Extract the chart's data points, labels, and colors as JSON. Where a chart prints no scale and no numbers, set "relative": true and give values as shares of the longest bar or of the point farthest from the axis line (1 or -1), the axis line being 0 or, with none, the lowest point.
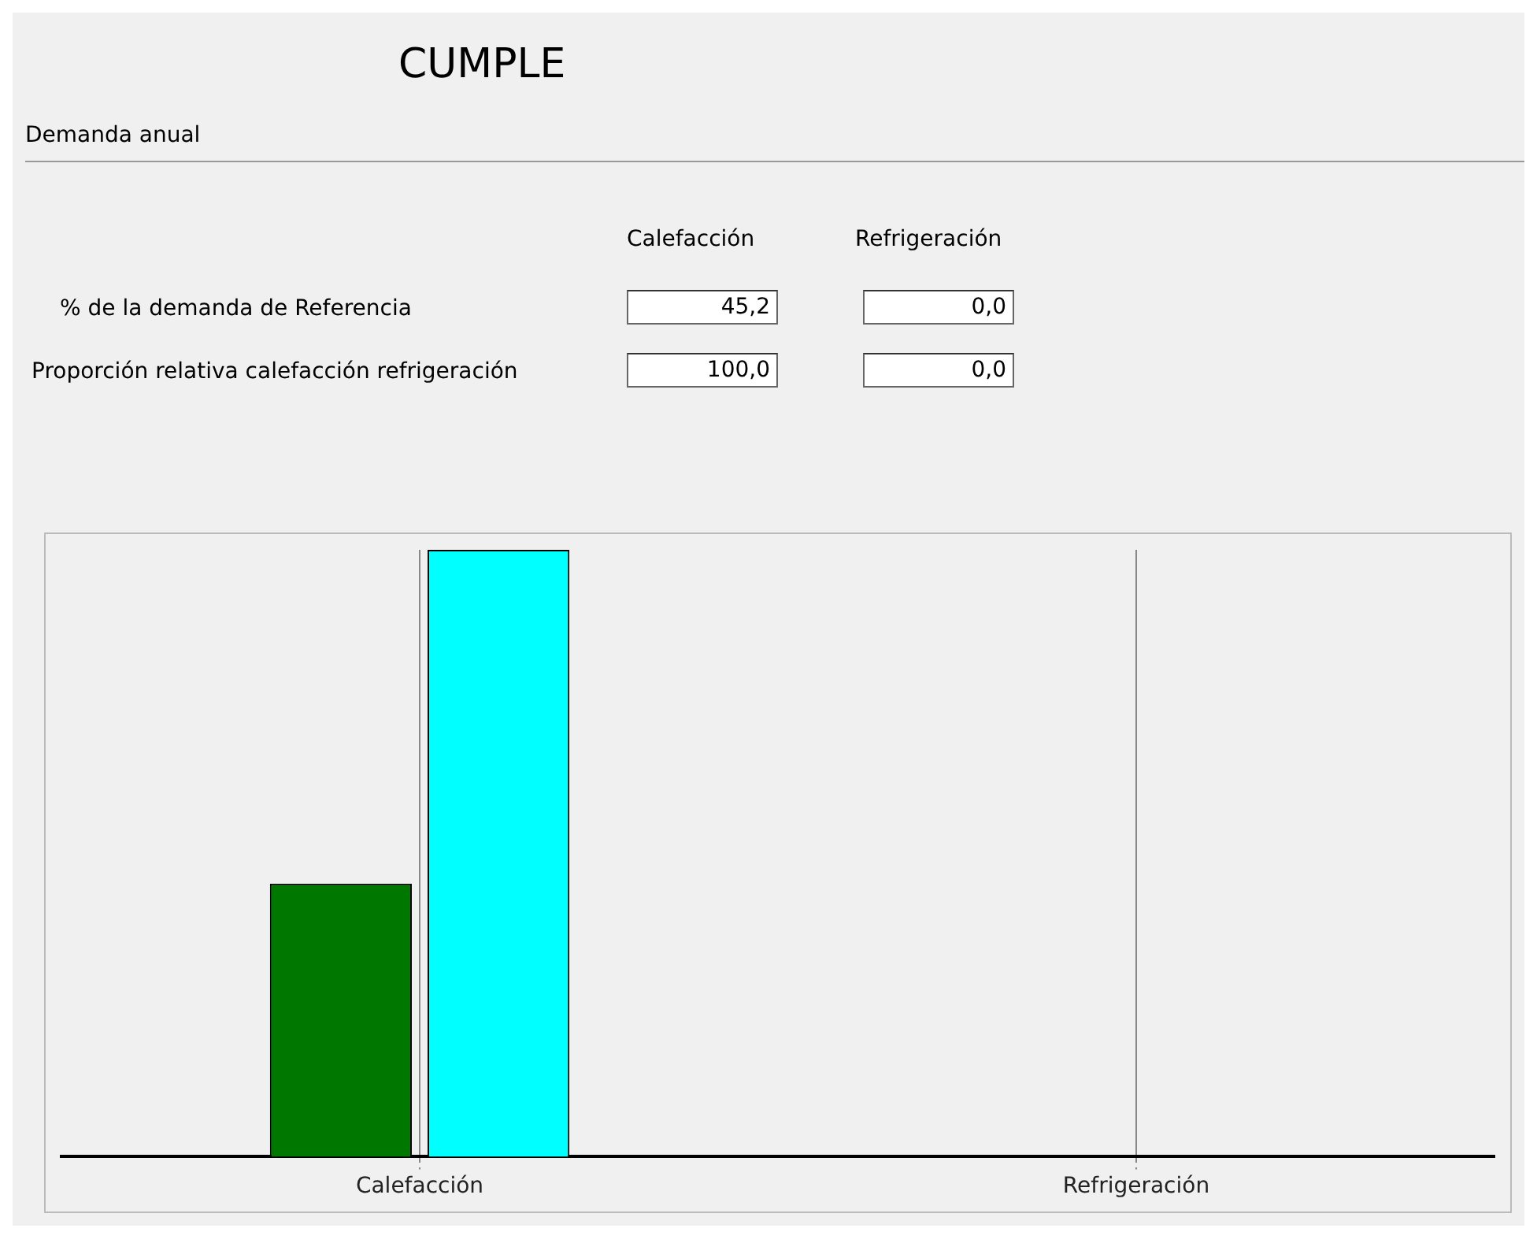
{
  "chart_data": {
    "type": "bar",
    "title": "CUMPLE",
    "subtitle": "Demanda anual",
    "relative": true,
    "grid": "x",
    "legend": false,
    "categories": [
      "Calefacción",
      "Refrigeración"
    ],
    "series": [
      {
        "colors": [
          "#007800",
          "#c00000"
        ],
        "values": [
          0.45,
          0
        ]
      },
      {
        "color": "#00ffff",
        "values": [
          1,
          0
        ]
      }
    ],
    "annotations": [
      "Calefacción",
      "Refrigeración",
      "% de la demanda de Referencia",
      "45,2",
      "0,0",
      "Proporción relativa calefacción refrigeración",
      "100,0",
      "0,0"
    ]
  }
}
